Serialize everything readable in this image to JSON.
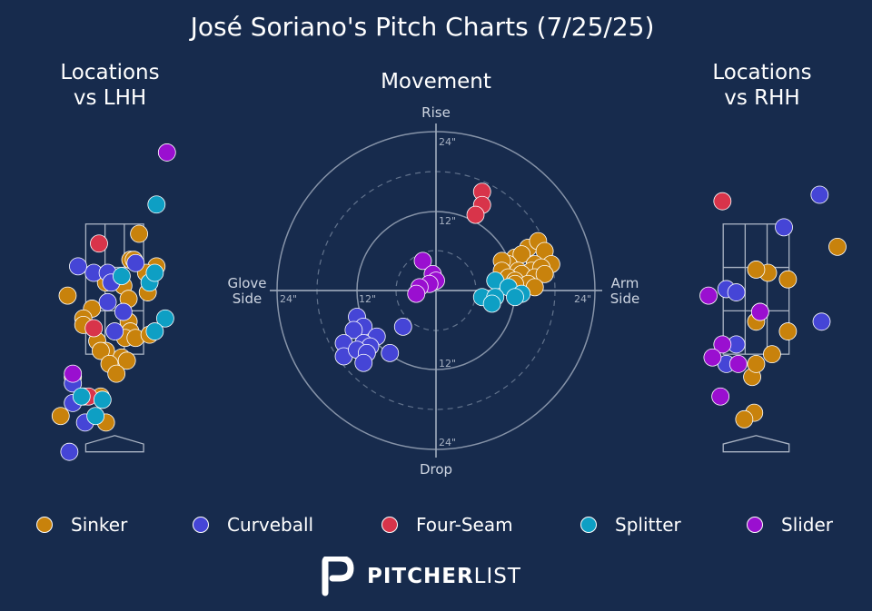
{
  "title": "José Soriano's Pitch Charts (7/25/25)",
  "panels": {
    "lhh_title_line1": "Locations",
    "lhh_title_line2": "vs LHH",
    "movement_title": "Movement",
    "rhh_title_line1": "Locations",
    "rhh_title_line2": "vs RHH"
  },
  "movement_axes": {
    "top": "Rise",
    "bottom": "Drop",
    "left_line1": "Glove",
    "left_line2": "Side",
    "right_line1": "Arm",
    "right_line2": "Side",
    "ring_labels": [
      "12\"",
      "24\""
    ]
  },
  "legend": [
    {
      "name": "Sinker",
      "color": "#c8820c"
    },
    {
      "name": "Curveball",
      "color": "#4545d6"
    },
    {
      "name": "Four-Seam",
      "color": "#d8344a"
    },
    {
      "name": "Splitter",
      "color": "#0e9fc4"
    },
    {
      "name": "Slider",
      "color": "#9a0fd0"
    }
  ],
  "brand": {
    "bold": "PITCHER",
    "light": "LIST"
  },
  "chart_data": [
    {
      "type": "scatter",
      "title": "Locations vs LHH",
      "units": "feet",
      "xlim": [
        -2.3,
        2.6
      ],
      "ylim": [
        -0.2,
        4.85
      ],
      "strike_zone": {
        "x": [
          -0.83,
          0.83
        ],
        "y": [
          1.5,
          3.5
        ]
      },
      "series": [
        {
          "name": "Sinker",
          "points": [
            [
              0.7,
              3.35
            ],
            [
              0.45,
              2.95
            ],
            [
              0.55,
              2.95
            ],
            [
              1.2,
              2.85
            ],
            [
              0.9,
              2.75
            ],
            [
              -0.25,
              2.6
            ],
            [
              0.25,
              2.55
            ],
            [
              0.95,
              2.45
            ],
            [
              -1.35,
              2.4
            ],
            [
              0.4,
              2.35
            ],
            [
              -0.65,
              2.2
            ],
            [
              0.4,
              2.0
            ],
            [
              -0.9,
              2.05
            ],
            [
              0.45,
              1.85
            ],
            [
              -0.9,
              1.95
            ],
            [
              0.3,
              1.75
            ],
            [
              0.6,
              1.75
            ],
            [
              1.0,
              1.8
            ],
            [
              -0.5,
              1.7
            ],
            [
              -0.25,
              1.55
            ],
            [
              -0.4,
              1.55
            ],
            [
              0.2,
              1.45
            ],
            [
              0.35,
              1.4
            ],
            [
              -0.15,
              1.35
            ],
            [
              0.05,
              1.2
            ],
            [
              -1.2,
              1.15
            ],
            [
              -0.9,
              0.85
            ],
            [
              -0.4,
              0.85
            ],
            [
              -1.55,
              0.55
            ],
            [
              -0.25,
              0.45
            ]
          ]
        },
        {
          "name": "Curveball",
          "points": [
            [
              -0.6,
              2.75
            ],
            [
              -1.05,
              2.85
            ],
            [
              0.6,
              2.9
            ],
            [
              -0.2,
              2.75
            ],
            [
              -0.1,
              2.6
            ],
            [
              0.25,
              2.15
            ],
            [
              -0.2,
              2.3
            ],
            [
              0.0,
              1.85
            ],
            [
              -1.2,
              1.05
            ],
            [
              -1.2,
              0.75
            ],
            [
              -0.85,
              0.45
            ],
            [
              -1.3,
              0.0
            ]
          ]
        },
        {
          "name": "Four-Seam",
          "points": [
            [
              -0.45,
              3.2
            ],
            [
              -0.6,
              1.9
            ],
            [
              -0.75,
              0.85
            ]
          ]
        },
        {
          "name": "Splitter",
          "points": [
            [
              1.2,
              3.8
            ],
            [
              0.2,
              2.7
            ],
            [
              1.0,
              2.6
            ],
            [
              1.15,
              2.75
            ],
            [
              1.45,
              2.05
            ],
            [
              1.15,
              1.85
            ],
            [
              -0.95,
              0.85
            ],
            [
              -0.35,
              0.8
            ],
            [
              -0.55,
              0.55
            ]
          ]
        },
        {
          "name": "Slider",
          "points": [
            [
              1.5,
              4.6
            ],
            [
              -1.2,
              1.2
            ]
          ]
        }
      ]
    },
    {
      "type": "scatter",
      "title": "Movement",
      "projection": "polar",
      "units": "inches",
      "xlabel": "Glove Side / Arm Side",
      "ylabel": "Drop / Rise",
      "range": 24,
      "series": [
        {
          "name": "Sinker",
          "points": [
            [
              12,
              5
            ],
            [
              14,
              6.5
            ],
            [
              15.5,
              7.5
            ],
            [
              13,
              5.5
            ],
            [
              16.5,
              6
            ],
            [
              15,
              4
            ],
            [
              17.5,
              4
            ],
            [
              11,
              4
            ],
            [
              10,
              4.5
            ],
            [
              10,
              3
            ],
            [
              12.5,
              3
            ],
            [
              14.5,
              3
            ],
            [
              16,
              3.5
            ],
            [
              13,
              2.5
            ],
            [
              11,
              2
            ],
            [
              15,
              2
            ],
            [
              16.5,
              2.5
            ],
            [
              12,
              1.5
            ],
            [
              14,
              1
            ],
            [
              12,
              1
            ],
            [
              15,
              0.5
            ]
          ]
        },
        {
          "name": "Curveball",
          "points": [
            [
              -12,
              -4
            ],
            [
              -11,
              -5.5
            ],
            [
              -12.5,
              -6
            ],
            [
              -9,
              -7
            ],
            [
              -14,
              -8
            ],
            [
              -11,
              -8
            ],
            [
              -10,
              -8.5
            ],
            [
              -14,
              -10
            ],
            [
              -12,
              -9
            ],
            [
              -10.5,
              -9.5
            ],
            [
              -7,
              -9.5
            ],
            [
              -11,
              -11
            ],
            [
              -5,
              -5.5
            ]
          ]
        },
        {
          "name": "Four-Seam",
          "points": [
            [
              7,
              15
            ],
            [
              7,
              13
            ],
            [
              6,
              11.5
            ]
          ]
        },
        {
          "name": "Splitter",
          "points": [
            [
              9,
              1.5
            ],
            [
              11,
              0.5
            ],
            [
              13,
              -0.5
            ],
            [
              7,
              -1
            ],
            [
              9,
              -1
            ],
            [
              12,
              -1
            ],
            [
              8.5,
              -2
            ]
          ]
        },
        {
          "name": "Slider",
          "points": [
            [
              -2,
              4.5
            ],
            [
              -0.5,
              2.5
            ],
            [
              0,
              1.5
            ],
            [
              -1,
              1
            ],
            [
              -2.5,
              0.5
            ],
            [
              -3,
              -0.5
            ]
          ]
        }
      ]
    },
    {
      "type": "scatter",
      "title": "Locations vs RHH",
      "units": "feet",
      "xlim": [
        -2.3,
        2.6
      ],
      "ylim": [
        -0.2,
        4.85
      ],
      "strike_zone": {
        "x": [
          -0.83,
          0.83
        ],
        "y": [
          1.5,
          3.5
        ]
      },
      "series": [
        {
          "name": "Sinker",
          "points": [
            [
              2.05,
              3.15
            ],
            [
              0.3,
              2.75
            ],
            [
              0.0,
              2.8
            ],
            [
              0.8,
              2.65
            ],
            [
              0.0,
              2.0
            ],
            [
              0.1,
              2.15
            ],
            [
              0.8,
              1.85
            ],
            [
              -0.1,
              1.15
            ],
            [
              0.0,
              1.35
            ],
            [
              0.4,
              1.5
            ],
            [
              -0.05,
              0.6
            ],
            [
              -0.3,
              0.5
            ]
          ]
        },
        {
          "name": "Curveball",
          "points": [
            [
              1.6,
              3.95
            ],
            [
              0.7,
              3.45
            ],
            [
              -0.75,
              2.5
            ],
            [
              -0.5,
              2.45
            ],
            [
              1.65,
              2.0
            ],
            [
              -0.5,
              1.65
            ],
            [
              -0.75,
              1.35
            ]
          ]
        },
        {
          "name": "Four-Seam",
          "points": [
            [
              -0.85,
              3.85
            ]
          ]
        },
        {
          "name": "Splitter",
          "points": []
        },
        {
          "name": "Slider",
          "points": [
            [
              -1.2,
              2.4
            ],
            [
              0.1,
              2.15
            ],
            [
              -0.85,
              1.65
            ],
            [
              -1.1,
              1.45
            ],
            [
              -0.45,
              1.35
            ],
            [
              -0.9,
              0.85
            ]
          ]
        }
      ]
    }
  ]
}
